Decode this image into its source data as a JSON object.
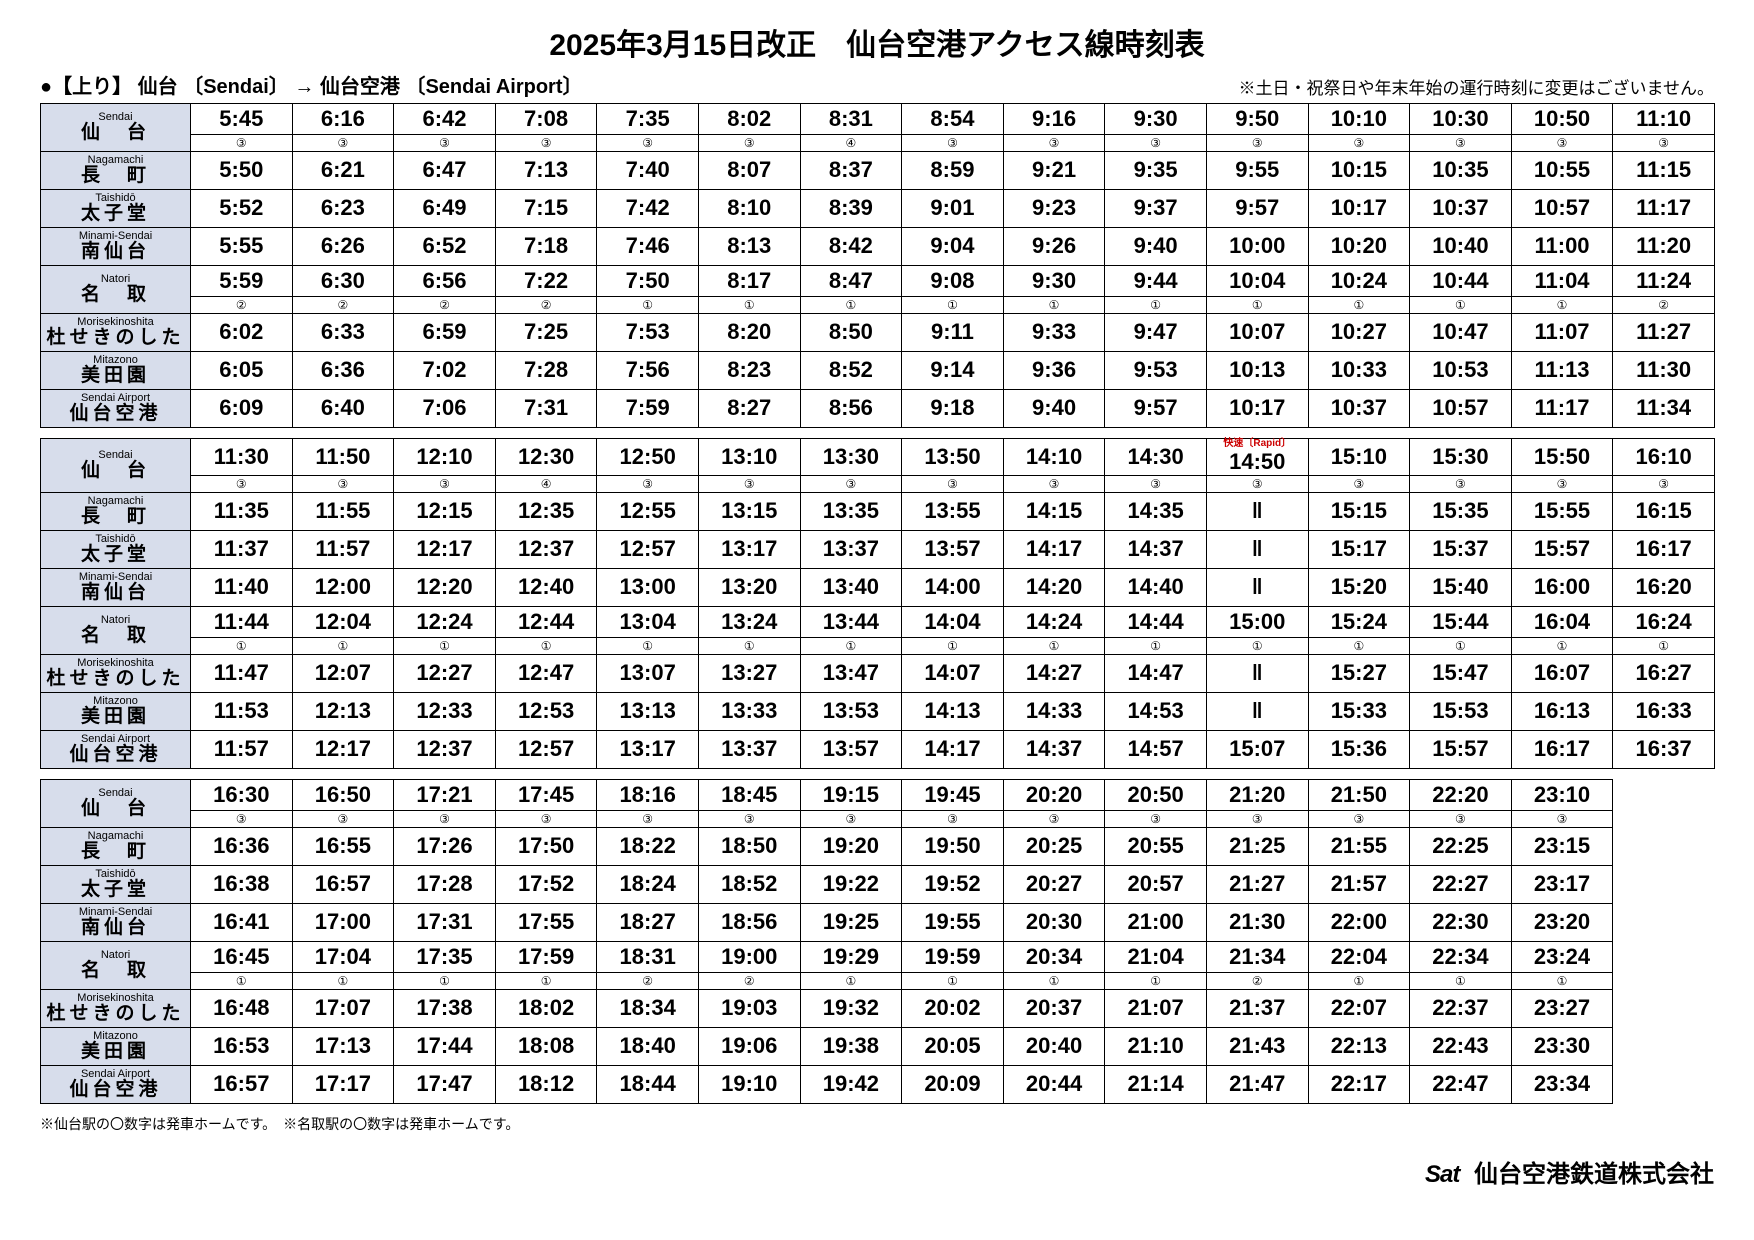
{
  "title": "2025年3月15日改正　仙台空港アクセス線時刻表",
  "direction": "●【上り】  仙台  〔Sendai〕 →   仙台空港  〔Sendai Airport〕",
  "holiday_note": "※土日・祝祭日や年末年始の運行時刻に変更はございません。",
  "footnote": "※仙台駅の〇数字は発車ホームです。　※名取駅の〇数字は発車ホームです。",
  "company": "仙台空港鉄道株式会社",
  "stations": [
    {
      "romaji": "Sendai",
      "kanji": "仙　台"
    },
    {
      "romaji": "Nagamachi",
      "kanji": "長　町"
    },
    {
      "romaji": "Taishidō",
      "kanji": "太子堂"
    },
    {
      "romaji": "Minami-Sendai",
      "kanji": "南仙台"
    },
    {
      "romaji": "Natori",
      "kanji": "名　取"
    },
    {
      "romaji": "Morisekinoshita",
      "kanji": "杜せきのした"
    },
    {
      "romaji": "Mitazono",
      "kanji": "美田園"
    },
    {
      "romaji": "Sendai Airport",
      "kanji": "仙台空港"
    }
  ],
  "blocks": [
    {
      "cols": 15,
      "sendai_plat": [
        "③",
        "③",
        "③",
        "③",
        "③",
        "③",
        "④",
        "③",
        "③",
        "③",
        "③",
        "③",
        "③",
        "③",
        "③"
      ],
      "natori_plat": [
        "②",
        "②",
        "②",
        "②",
        "①",
        "①",
        "①",
        "①",
        "①",
        "①",
        "①",
        "①",
        "①",
        "①",
        "②"
      ],
      "rows": [
        [
          "5:45",
          "6:16",
          "6:42",
          "7:08",
          "7:35",
          "8:02",
          "8:31",
          "8:54",
          "9:16",
          "9:30",
          "9:50",
          "10:10",
          "10:30",
          "10:50",
          "11:10"
        ],
        [
          "5:50",
          "6:21",
          "6:47",
          "7:13",
          "7:40",
          "8:07",
          "8:37",
          "8:59",
          "9:21",
          "9:35",
          "9:55",
          "10:15",
          "10:35",
          "10:55",
          "11:15"
        ],
        [
          "5:52",
          "6:23",
          "6:49",
          "7:15",
          "7:42",
          "8:10",
          "8:39",
          "9:01",
          "9:23",
          "9:37",
          "9:57",
          "10:17",
          "10:37",
          "10:57",
          "11:17"
        ],
        [
          "5:55",
          "6:26",
          "6:52",
          "7:18",
          "7:46",
          "8:13",
          "8:42",
          "9:04",
          "9:26",
          "9:40",
          "10:00",
          "10:20",
          "10:40",
          "11:00",
          "11:20"
        ],
        [
          "5:59",
          "6:30",
          "6:56",
          "7:22",
          "7:50",
          "8:17",
          "8:47",
          "9:08",
          "9:30",
          "9:44",
          "10:04",
          "10:24",
          "10:44",
          "11:04",
          "11:24"
        ],
        [
          "6:02",
          "6:33",
          "6:59",
          "7:25",
          "7:53",
          "8:20",
          "8:50",
          "9:11",
          "9:33",
          "9:47",
          "10:07",
          "10:27",
          "10:47",
          "11:07",
          "11:27"
        ],
        [
          "6:05",
          "6:36",
          "7:02",
          "7:28",
          "7:56",
          "8:23",
          "8:52",
          "9:14",
          "9:36",
          "9:53",
          "10:13",
          "10:33",
          "10:53",
          "11:13",
          "11:30"
        ],
        [
          "6:09",
          "6:40",
          "7:06",
          "7:31",
          "7:59",
          "8:27",
          "8:56",
          "9:18",
          "9:40",
          "9:57",
          "10:17",
          "10:37",
          "10:57",
          "11:17",
          "11:34"
        ]
      ]
    },
    {
      "cols": 15,
      "sendai_plat": [
        "③",
        "③",
        "③",
        "④",
        "③",
        "③",
        "③",
        "③",
        "③",
        "③",
        "③",
        "③",
        "③",
        "③",
        "③"
      ],
      "natori_plat": [
        "①",
        "①",
        "①",
        "①",
        "①",
        "①",
        "①",
        "①",
        "①",
        "①",
        "①",
        "①",
        "①",
        "①",
        "①"
      ],
      "rapid_col": 10,
      "rows": [
        [
          "11:30",
          "11:50",
          "12:10",
          "12:30",
          "12:50",
          "13:10",
          "13:30",
          "13:50",
          "14:10",
          "14:30",
          "14:50",
          "15:10",
          "15:30",
          "15:50",
          "16:10"
        ],
        [
          "11:35",
          "11:55",
          "12:15",
          "12:35",
          "12:55",
          "13:15",
          "13:35",
          "13:55",
          "14:15",
          "14:35",
          "‖",
          "15:15",
          "15:35",
          "15:55",
          "16:15"
        ],
        [
          "11:37",
          "11:57",
          "12:17",
          "12:37",
          "12:57",
          "13:17",
          "13:37",
          "13:57",
          "14:17",
          "14:37",
          "‖",
          "15:17",
          "15:37",
          "15:57",
          "16:17"
        ],
        [
          "11:40",
          "12:00",
          "12:20",
          "12:40",
          "13:00",
          "13:20",
          "13:40",
          "14:00",
          "14:20",
          "14:40",
          "‖",
          "15:20",
          "15:40",
          "16:00",
          "16:20"
        ],
        [
          "11:44",
          "12:04",
          "12:24",
          "12:44",
          "13:04",
          "13:24",
          "13:44",
          "14:04",
          "14:24",
          "14:44",
          "15:00",
          "15:24",
          "15:44",
          "16:04",
          "16:24"
        ],
        [
          "11:47",
          "12:07",
          "12:27",
          "12:47",
          "13:07",
          "13:27",
          "13:47",
          "14:07",
          "14:27",
          "14:47",
          "‖",
          "15:27",
          "15:47",
          "16:07",
          "16:27"
        ],
        [
          "11:53",
          "12:13",
          "12:33",
          "12:53",
          "13:13",
          "13:33",
          "13:53",
          "14:13",
          "14:33",
          "14:53",
          "‖",
          "15:33",
          "15:53",
          "16:13",
          "16:33"
        ],
        [
          "11:57",
          "12:17",
          "12:37",
          "12:57",
          "13:17",
          "13:37",
          "13:57",
          "14:17",
          "14:37",
          "14:57",
          "15:07",
          "15:36",
          "15:57",
          "16:17",
          "16:37"
        ]
      ]
    },
    {
      "cols": 14,
      "sendai_plat": [
        "③",
        "③",
        "③",
        "③",
        "③",
        "③",
        "③",
        "③",
        "③",
        "③",
        "③",
        "③",
        "③",
        "③"
      ],
      "natori_plat": [
        "①",
        "①",
        "①",
        "①",
        "②",
        "②",
        "①",
        "①",
        "①",
        "①",
        "②",
        "①",
        "①",
        "①"
      ],
      "rows": [
        [
          "16:30",
          "16:50",
          "17:21",
          "17:45",
          "18:16",
          "18:45",
          "19:15",
          "19:45",
          "20:20",
          "20:50",
          "21:20",
          "21:50",
          "22:20",
          "23:10"
        ],
        [
          "16:36",
          "16:55",
          "17:26",
          "17:50",
          "18:22",
          "18:50",
          "19:20",
          "19:50",
          "20:25",
          "20:55",
          "21:25",
          "21:55",
          "22:25",
          "23:15"
        ],
        [
          "16:38",
          "16:57",
          "17:28",
          "17:52",
          "18:24",
          "18:52",
          "19:22",
          "19:52",
          "20:27",
          "20:57",
          "21:27",
          "21:57",
          "22:27",
          "23:17"
        ],
        [
          "16:41",
          "17:00",
          "17:31",
          "17:55",
          "18:27",
          "18:56",
          "19:25",
          "19:55",
          "20:30",
          "21:00",
          "21:30",
          "22:00",
          "22:30",
          "23:20"
        ],
        [
          "16:45",
          "17:04",
          "17:35",
          "17:59",
          "18:31",
          "19:00",
          "19:29",
          "19:59",
          "20:34",
          "21:04",
          "21:34",
          "22:04",
          "22:34",
          "23:24"
        ],
        [
          "16:48",
          "17:07",
          "17:38",
          "18:02",
          "18:34",
          "19:03",
          "19:32",
          "20:02",
          "20:37",
          "21:07",
          "21:37",
          "22:07",
          "22:37",
          "23:27"
        ],
        [
          "16:53",
          "17:13",
          "17:44",
          "18:08",
          "18:40",
          "19:06",
          "19:38",
          "20:05",
          "20:40",
          "21:10",
          "21:43",
          "22:13",
          "22:43",
          "23:30"
        ],
        [
          "16:57",
          "17:17",
          "17:47",
          "18:12",
          "18:44",
          "19:10",
          "19:42",
          "20:09",
          "20:44",
          "21:14",
          "21:47",
          "22:17",
          "22:47",
          "23:34"
        ]
      ]
    }
  ]
}
